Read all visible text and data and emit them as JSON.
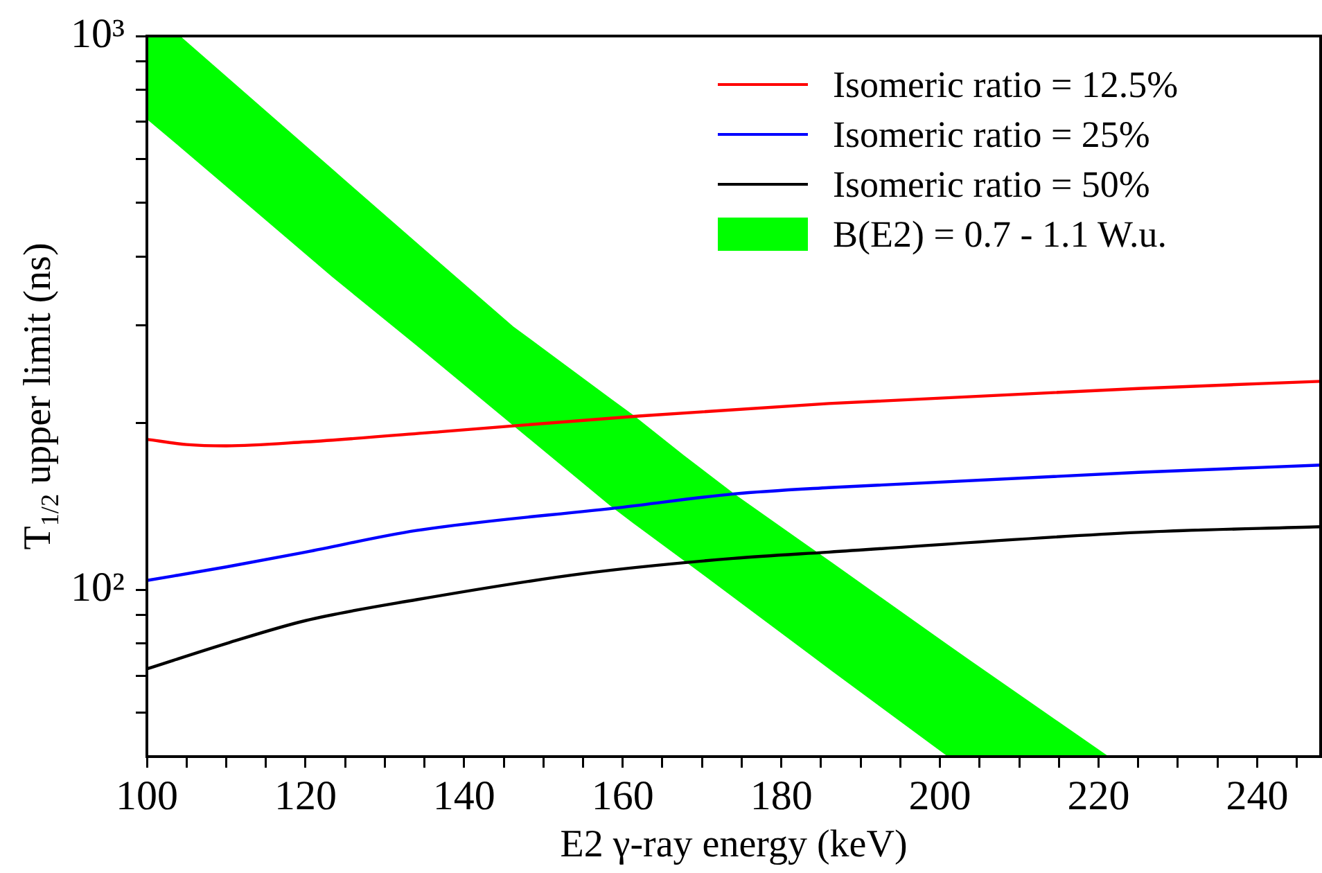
{
  "chart_data": {
    "type": "line",
    "xlabel": "E2 γ-ray energy (keV)",
    "ylabel": "T$_{1/2}$ upper limit (ns)",
    "log": "y",
    "grid": false,
    "legend": "top right",
    "marker": "none",
    "line_style": "solid",
    "xlim": [
      100,
      248
    ],
    "ylim": [
      50,
      1000
    ],
    "xticks": [
      100,
      {
        "value": 105,
        "label": null
      },
      {
        "value": 110,
        "label": null
      },
      {
        "value": 115,
        "label": null
      },
      120,
      {
        "value": 125,
        "label": null
      },
      {
        "value": 130,
        "label": null
      },
      {
        "value": 135,
        "label": null
      },
      140,
      {
        "value": 145,
        "label": null
      },
      {
        "value": 150,
        "label": null
      },
      {
        "value": 155,
        "label": null
      },
      160,
      {
        "value": 165,
        "label": null
      },
      {
        "value": 170,
        "label": null
      },
      {
        "value": 175,
        "label": null
      },
      180,
      {
        "value": 185,
        "label": null
      },
      {
        "value": 190,
        "label": null
      },
      {
        "value": 195,
        "label": null
      },
      200,
      {
        "value": 205,
        "label": null
      },
      {
        "value": 210,
        "label": null
      },
      {
        "value": 215,
        "label": null
      },
      220,
      {
        "value": 225,
        "label": null
      },
      {
        "value": 230,
        "label": null
      },
      {
        "value": 235,
        "label": null
      },
      240,
      {
        "value": 245,
        "label": null
      }
    ],
    "yticks": [
      {
        "value": 60,
        "label": null
      },
      {
        "value": 70,
        "label": null
      },
      {
        "value": 80,
        "label": null
      },
      {
        "value": 90,
        "label": null
      },
      {
        "value": 100,
        "label": "10²"
      },
      {
        "value": 200,
        "label": null
      },
      {
        "value": 300,
        "label": null
      },
      {
        "value": 400,
        "label": null
      },
      {
        "value": 500,
        "label": null
      },
      {
        "value": 600,
        "label": null
      },
      {
        "value": 700,
        "label": null
      },
      {
        "value": 800,
        "label": null
      },
      {
        "value": 900,
        "label": null
      },
      {
        "value": 1000,
        "label": "10³"
      }
    ],
    "series": [
      {
        "name": "Isomeric ratio = 12.5%",
        "type": "line",
        "color": "#ff0000",
        "x": [
          100,
          105,
          110,
          120,
          137,
          162,
          186,
          225,
          248
        ],
        "values": [
          187,
          183,
          182,
          185,
          193,
          206,
          217,
          231,
          238
        ]
      },
      {
        "name": "Isomeric ratio = 25%",
        "type": "line",
        "color": "#0000ff",
        "x": [
          100,
          110,
          120,
          134,
          160,
          174,
          186,
          225,
          248
        ],
        "values": [
          104,
          110,
          117,
          128,
          141,
          149,
          153,
          163,
          168
        ]
      },
      {
        "name": "Isomeric ratio = 50%",
        "type": "line",
        "color": "#000000",
        "x": [
          100,
          110,
          120,
          134,
          155,
          174,
          186,
          225,
          248
        ],
        "values": [
          72,
          80,
          88,
          96,
          107,
          114,
          117,
          127,
          130
        ]
      },
      {
        "name": "B(E2) = 0.7 - 1.1 W.u.",
        "type": "area",
        "color": "#00ff00",
        "x": [
          100,
          104.2,
          123.4,
          133.9,
          146.2,
          158.4,
          161.3,
          167.7,
          174.1,
          183.4,
          186.4,
          201,
          203.8,
          221.3
        ],
        "values": [
          null,
          null,
          null,
          null,
          null,
          null,
          null,
          null,
          null,
          null,
          null,
          null,
          null,
          null
        ],
        "lower": [
          708,
          630,
          367,
          277,
          198,
          142,
          132,
          113,
          96.6,
          76.8,
          71.3,
          50,
          50,
          50
        ],
        "upper": [
          1000,
          1000,
          575,
          425,
          299,
          222,
          207,
          175,
          149,
          120,
          112,
          79.6,
          74.6,
          50
        ]
      }
    ]
  }
}
